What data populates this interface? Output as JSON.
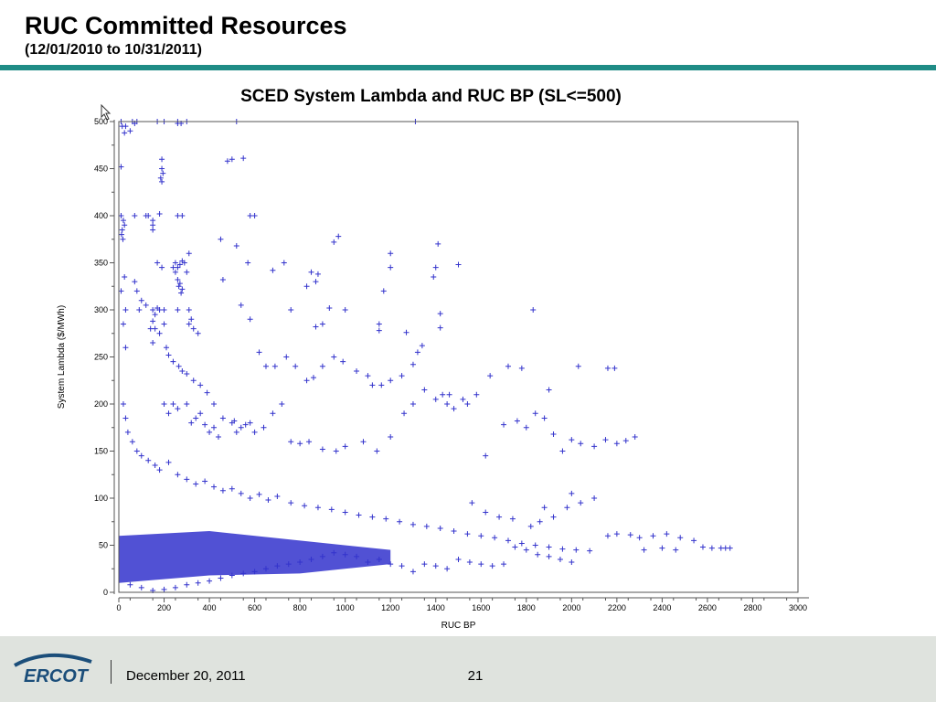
{
  "slide": {
    "title": "RUC Committed Resources",
    "subtitle": "(12/01/2010 to 10/31/2011)",
    "accent_color": "#1f8c86"
  },
  "chart_data": {
    "type": "scatter",
    "title": "SCED System Lambda and RUC BP (SL<=500)",
    "xlabel": "RUC BP",
    "ylabel": "System Lambda ($/MWh)",
    "xlim": [
      0,
      3000
    ],
    "ylim": [
      0,
      500
    ],
    "x_ticks": [
      0,
      200,
      400,
      600,
      800,
      1000,
      1200,
      1400,
      1600,
      1800,
      2000,
      2200,
      2400,
      2600,
      2800,
      3000
    ],
    "y_ticks": [
      0,
      50,
      100,
      150,
      200,
      250,
      300,
      350,
      400,
      450,
      500
    ],
    "marker": "plus",
    "marker_color": "#3333cc",
    "grid": false,
    "points": [
      [
        10,
        500
      ],
      [
        30,
        495
      ],
      [
        50,
        490
      ],
      [
        60,
        500
      ],
      [
        80,
        500
      ],
      [
        170,
        500
      ],
      [
        200,
        500
      ],
      [
        260,
        500
      ],
      [
        300,
        500
      ],
      [
        520,
        500
      ],
      [
        1310,
        500
      ],
      [
        15,
        495
      ],
      [
        25,
        488
      ],
      [
        70,
        498
      ],
      [
        260,
        498
      ],
      [
        275,
        498
      ],
      [
        190,
        460
      ],
      [
        190,
        450
      ],
      [
        185,
        440
      ],
      [
        195,
        445
      ],
      [
        190,
        436
      ],
      [
        10,
        452
      ],
      [
        480,
        458
      ],
      [
        500,
        460
      ],
      [
        550,
        461
      ],
      [
        10,
        400
      ],
      [
        20,
        395
      ],
      [
        15,
        385
      ],
      [
        18,
        375
      ],
      [
        25,
        390
      ],
      [
        12,
        380
      ],
      [
        70,
        400
      ],
      [
        120,
        400
      ],
      [
        130,
        400
      ],
      [
        180,
        402
      ],
      [
        150,
        395
      ],
      [
        150,
        390
      ],
      [
        150,
        385
      ],
      [
        260,
        400
      ],
      [
        280,
        400
      ],
      [
        580,
        400
      ],
      [
        600,
        400
      ],
      [
        450,
        375
      ],
      [
        950,
        372
      ],
      [
        970,
        378
      ],
      [
        1410,
        370
      ],
      [
        520,
        368
      ],
      [
        310,
        360
      ],
      [
        1200,
        360
      ],
      [
        170,
        350
      ],
      [
        190,
        345
      ],
      [
        240,
        345
      ],
      [
        250,
        340
      ],
      [
        260,
        332
      ],
      [
        270,
        328
      ],
      [
        280,
        322
      ],
      [
        300,
        340
      ],
      [
        280,
        352
      ],
      [
        290,
        350
      ],
      [
        270,
        348
      ],
      [
        250,
        350
      ],
      [
        260,
        345
      ],
      [
        265,
        325
      ],
      [
        275,
        318
      ],
      [
        570,
        350
      ],
      [
        730,
        350
      ],
      [
        880,
        338
      ],
      [
        680,
        342
      ],
      [
        850,
        340
      ],
      [
        1200,
        345
      ],
      [
        1400,
        345
      ],
      [
        1500,
        348
      ],
      [
        1390,
        335
      ],
      [
        460,
        332
      ],
      [
        830,
        325
      ],
      [
        870,
        330
      ],
      [
        1170,
        320
      ],
      [
        70,
        330
      ],
      [
        80,
        320
      ],
      [
        25,
        335
      ],
      [
        90,
        300
      ],
      [
        100,
        310
      ],
      [
        120,
        305
      ],
      [
        150,
        300
      ],
      [
        170,
        302
      ],
      [
        160,
        295
      ],
      [
        180,
        300
      ],
      [
        200,
        300
      ],
      [
        260,
        300
      ],
      [
        310,
        300
      ],
      [
        320,
        290
      ],
      [
        310,
        285
      ],
      [
        330,
        280
      ],
      [
        350,
        275
      ],
      [
        200,
        285
      ],
      [
        150,
        288
      ],
      [
        140,
        280
      ],
      [
        160,
        280
      ],
      [
        180,
        275
      ],
      [
        760,
        300
      ],
      [
        930,
        302
      ],
      [
        1000,
        300
      ],
      [
        1150,
        285
      ],
      [
        1150,
        278
      ],
      [
        1270,
        276
      ],
      [
        1420,
        281
      ],
      [
        1420,
        296
      ],
      [
        1830,
        300
      ],
      [
        540,
        305
      ],
      [
        580,
        290
      ],
      [
        870,
        282
      ],
      [
        900,
        285
      ],
      [
        10,
        320
      ],
      [
        30,
        300
      ],
      [
        20,
        285
      ],
      [
        30,
        260
      ],
      [
        150,
        265
      ],
      [
        210,
        260
      ],
      [
        220,
        252
      ],
      [
        240,
        245
      ],
      [
        265,
        240
      ],
      [
        280,
        235
      ],
      [
        300,
        232
      ],
      [
        330,
        225
      ],
      [
        360,
        220
      ],
      [
        390,
        212
      ],
      [
        420,
        200
      ],
      [
        460,
        185
      ],
      [
        510,
        182
      ],
      [
        520,
        170
      ],
      [
        540,
        175
      ],
      [
        580,
        180
      ],
      [
        620,
        255
      ],
      [
        650,
        240
      ],
      [
        690,
        240
      ],
      [
        740,
        250
      ],
      [
        780,
        240
      ],
      [
        830,
        225
      ],
      [
        860,
        228
      ],
      [
        900,
        240
      ],
      [
        950,
        250
      ],
      [
        990,
        245
      ],
      [
        1050,
        235
      ],
      [
        1100,
        230
      ],
      [
        1120,
        220
      ],
      [
        1160,
        220
      ],
      [
        1200,
        225
      ],
      [
        1250,
        230
      ],
      [
        1300,
        242
      ],
      [
        1320,
        255
      ],
      [
        1340,
        262
      ],
      [
        1430,
        210
      ],
      [
        1450,
        200
      ],
      [
        1520,
        205
      ],
      [
        1620,
        145
      ],
      [
        1720,
        240
      ],
      [
        1780,
        238
      ],
      [
        1900,
        215
      ],
      [
        2030,
        240
      ],
      [
        2160,
        238
      ],
      [
        2190,
        238
      ],
      [
        200,
        200
      ],
      [
        220,
        190
      ],
      [
        240,
        200
      ],
      [
        260,
        195
      ],
      [
        300,
        200
      ],
      [
        320,
        180
      ],
      [
        340,
        185
      ],
      [
        360,
        190
      ],
      [
        380,
        178
      ],
      [
        400,
        170
      ],
      [
        420,
        175
      ],
      [
        440,
        165
      ],
      [
        500,
        180
      ],
      [
        560,
        178
      ],
      [
        600,
        170
      ],
      [
        640,
        175
      ],
      [
        680,
        190
      ],
      [
        720,
        200
      ],
      [
        760,
        160
      ],
      [
        800,
        158
      ],
      [
        840,
        160
      ],
      [
        900,
        152
      ],
      [
        960,
        150
      ],
      [
        1000,
        155
      ],
      [
        1080,
        160
      ],
      [
        1140,
        150
      ],
      [
        1200,
        165
      ],
      [
        1260,
        190
      ],
      [
        1300,
        200
      ],
      [
        1350,
        215
      ],
      [
        1400,
        205
      ],
      [
        1460,
        210
      ],
      [
        1480,
        195
      ],
      [
        1540,
        200
      ],
      [
        1580,
        210
      ],
      [
        1640,
        230
      ],
      [
        1700,
        178
      ],
      [
        1760,
        182
      ],
      [
        1800,
        175
      ],
      [
        1840,
        190
      ],
      [
        1880,
        185
      ],
      [
        1920,
        168
      ],
      [
        1960,
        150
      ],
      [
        2000,
        162
      ],
      [
        2040,
        158
      ],
      [
        2100,
        155
      ],
      [
        2150,
        162
      ],
      [
        2200,
        158
      ],
      [
        2240,
        161
      ],
      [
        2280,
        165
      ],
      [
        20,
        200
      ],
      [
        30,
        185
      ],
      [
        40,
        170
      ],
      [
        60,
        160
      ],
      [
        80,
        150
      ],
      [
        100,
        145
      ],
      [
        130,
        140
      ],
      [
        160,
        135
      ],
      [
        180,
        130
      ],
      [
        220,
        138
      ],
      [
        260,
        125
      ],
      [
        300,
        120
      ],
      [
        340,
        115
      ],
      [
        380,
        118
      ],
      [
        420,
        112
      ],
      [
        460,
        108
      ],
      [
        500,
        110
      ],
      [
        540,
        105
      ],
      [
        580,
        100
      ],
      [
        620,
        104
      ],
      [
        660,
        98
      ],
      [
        700,
        102
      ],
      [
        760,
        95
      ],
      [
        820,
        92
      ],
      [
        880,
        90
      ],
      [
        940,
        88
      ],
      [
        1000,
        85
      ],
      [
        1060,
        82
      ],
      [
        1120,
        80
      ],
      [
        1180,
        78
      ],
      [
        1240,
        75
      ],
      [
        1300,
        72
      ],
      [
        1360,
        70
      ],
      [
        1420,
        68
      ],
      [
        1480,
        65
      ],
      [
        1540,
        62
      ],
      [
        1600,
        60
      ],
      [
        1660,
        58
      ],
      [
        1720,
        55
      ],
      [
        1780,
        52
      ],
      [
        1840,
        50
      ],
      [
        1900,
        48
      ],
      [
        1960,
        46
      ],
      [
        2020,
        45
      ],
      [
        2080,
        44
      ],
      [
        2160,
        60
      ],
      [
        2200,
        62
      ],
      [
        2260,
        61
      ],
      [
        2300,
        58
      ],
      [
        2360,
        60
      ],
      [
        2420,
        62
      ],
      [
        2480,
        58
      ],
      [
        2540,
        55
      ],
      [
        2580,
        48
      ],
      [
        2620,
        47
      ],
      [
        2660,
        47
      ],
      [
        2680,
        47
      ],
      [
        2700,
        47
      ],
      [
        2320,
        45
      ],
      [
        2400,
        47
      ],
      [
        2460,
        45
      ],
      [
        1750,
        48
      ],
      [
        1800,
        45
      ],
      [
        1850,
        40
      ],
      [
        1900,
        38
      ],
      [
        1950,
        35
      ],
      [
        2000,
        32
      ],
      [
        1700,
        30
      ],
      [
        1650,
        28
      ],
      [
        1600,
        30
      ],
      [
        1550,
        32
      ],
      [
        1500,
        35
      ],
      [
        1450,
        25
      ],
      [
        1400,
        28
      ],
      [
        1350,
        30
      ],
      [
        1300,
        22
      ],
      [
        1250,
        28
      ],
      [
        1200,
        30
      ],
      [
        1150,
        35
      ],
      [
        1100,
        32
      ],
      [
        1050,
        38
      ],
      [
        1000,
        40
      ],
      [
        950,
        42
      ],
      [
        900,
        38
      ],
      [
        850,
        35
      ],
      [
        800,
        32
      ],
      [
        750,
        30
      ],
      [
        700,
        28
      ],
      [
        650,
        25
      ],
      [
        600,
        22
      ],
      [
        550,
        20
      ],
      [
        500,
        18
      ],
      [
        450,
        15
      ],
      [
        400,
        12
      ],
      [
        350,
        10
      ],
      [
        300,
        8
      ],
      [
        250,
        5
      ],
      [
        200,
        3
      ],
      [
        150,
        2
      ],
      [
        100,
        5
      ],
      [
        50,
        8
      ],
      [
        1560,
        95
      ],
      [
        1620,
        85
      ],
      [
        1680,
        80
      ],
      [
        1740,
        78
      ],
      [
        1820,
        70
      ],
      [
        1860,
        75
      ],
      [
        1920,
        80
      ],
      [
        1980,
        90
      ],
      [
        2040,
        95
      ],
      [
        2100,
        100
      ],
      [
        2000,
        105
      ],
      [
        1880,
        90
      ]
    ]
  },
  "footer": {
    "logo_text": "ERCOT",
    "date": "December 20, 2011",
    "page_number": "21"
  }
}
